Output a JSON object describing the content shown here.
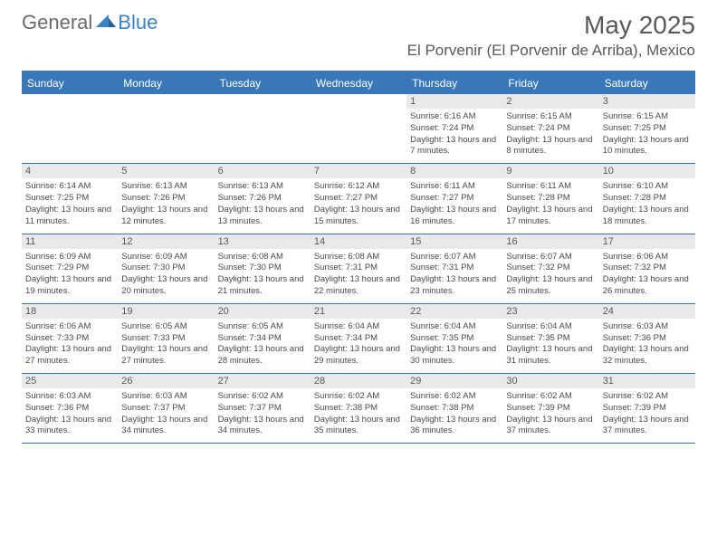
{
  "brand": {
    "general": "General",
    "blue": "Blue"
  },
  "title": "May 2025",
  "location": "El Porvenir (El Porvenir de Arriba), Mexico",
  "colors": {
    "header_bg": "#3878b8",
    "header_text": "#ffffff",
    "daynum_bg": "#e9e9e9",
    "text": "#5a5a5a",
    "border": "#3878b8"
  },
  "weekdays": [
    "Sunday",
    "Monday",
    "Tuesday",
    "Wednesday",
    "Thursday",
    "Friday",
    "Saturday"
  ],
  "month_start_weekday": 4,
  "days": [
    {
      "n": 1,
      "sunrise": "6:16 AM",
      "sunset": "7:24 PM",
      "daylight": "13 hours and 7 minutes."
    },
    {
      "n": 2,
      "sunrise": "6:15 AM",
      "sunset": "7:24 PM",
      "daylight": "13 hours and 8 minutes."
    },
    {
      "n": 3,
      "sunrise": "6:15 AM",
      "sunset": "7:25 PM",
      "daylight": "13 hours and 10 minutes."
    },
    {
      "n": 4,
      "sunrise": "6:14 AM",
      "sunset": "7:25 PM",
      "daylight": "13 hours and 11 minutes."
    },
    {
      "n": 5,
      "sunrise": "6:13 AM",
      "sunset": "7:26 PM",
      "daylight": "13 hours and 12 minutes."
    },
    {
      "n": 6,
      "sunrise": "6:13 AM",
      "sunset": "7:26 PM",
      "daylight": "13 hours and 13 minutes."
    },
    {
      "n": 7,
      "sunrise": "6:12 AM",
      "sunset": "7:27 PM",
      "daylight": "13 hours and 15 minutes."
    },
    {
      "n": 8,
      "sunrise": "6:11 AM",
      "sunset": "7:27 PM",
      "daylight": "13 hours and 16 minutes."
    },
    {
      "n": 9,
      "sunrise": "6:11 AM",
      "sunset": "7:28 PM",
      "daylight": "13 hours and 17 minutes."
    },
    {
      "n": 10,
      "sunrise": "6:10 AM",
      "sunset": "7:28 PM",
      "daylight": "13 hours and 18 minutes."
    },
    {
      "n": 11,
      "sunrise": "6:09 AM",
      "sunset": "7:29 PM",
      "daylight": "13 hours and 19 minutes."
    },
    {
      "n": 12,
      "sunrise": "6:09 AM",
      "sunset": "7:30 PM",
      "daylight": "13 hours and 20 minutes."
    },
    {
      "n": 13,
      "sunrise": "6:08 AM",
      "sunset": "7:30 PM",
      "daylight": "13 hours and 21 minutes."
    },
    {
      "n": 14,
      "sunrise": "6:08 AM",
      "sunset": "7:31 PM",
      "daylight": "13 hours and 22 minutes."
    },
    {
      "n": 15,
      "sunrise": "6:07 AM",
      "sunset": "7:31 PM",
      "daylight": "13 hours and 23 minutes."
    },
    {
      "n": 16,
      "sunrise": "6:07 AM",
      "sunset": "7:32 PM",
      "daylight": "13 hours and 25 minutes."
    },
    {
      "n": 17,
      "sunrise": "6:06 AM",
      "sunset": "7:32 PM",
      "daylight": "13 hours and 26 minutes."
    },
    {
      "n": 18,
      "sunrise": "6:06 AM",
      "sunset": "7:33 PM",
      "daylight": "13 hours and 27 minutes."
    },
    {
      "n": 19,
      "sunrise": "6:05 AM",
      "sunset": "7:33 PM",
      "daylight": "13 hours and 27 minutes."
    },
    {
      "n": 20,
      "sunrise": "6:05 AM",
      "sunset": "7:34 PM",
      "daylight": "13 hours and 28 minutes."
    },
    {
      "n": 21,
      "sunrise": "6:04 AM",
      "sunset": "7:34 PM",
      "daylight": "13 hours and 29 minutes."
    },
    {
      "n": 22,
      "sunrise": "6:04 AM",
      "sunset": "7:35 PM",
      "daylight": "13 hours and 30 minutes."
    },
    {
      "n": 23,
      "sunrise": "6:04 AM",
      "sunset": "7:35 PM",
      "daylight": "13 hours and 31 minutes."
    },
    {
      "n": 24,
      "sunrise": "6:03 AM",
      "sunset": "7:36 PM",
      "daylight": "13 hours and 32 minutes."
    },
    {
      "n": 25,
      "sunrise": "6:03 AM",
      "sunset": "7:36 PM",
      "daylight": "13 hours and 33 minutes."
    },
    {
      "n": 26,
      "sunrise": "6:03 AM",
      "sunset": "7:37 PM",
      "daylight": "13 hours and 34 minutes."
    },
    {
      "n": 27,
      "sunrise": "6:02 AM",
      "sunset": "7:37 PM",
      "daylight": "13 hours and 34 minutes."
    },
    {
      "n": 28,
      "sunrise": "6:02 AM",
      "sunset": "7:38 PM",
      "daylight": "13 hours and 35 minutes."
    },
    {
      "n": 29,
      "sunrise": "6:02 AM",
      "sunset": "7:38 PM",
      "daylight": "13 hours and 36 minutes."
    },
    {
      "n": 30,
      "sunrise": "6:02 AM",
      "sunset": "7:39 PM",
      "daylight": "13 hours and 37 minutes."
    },
    {
      "n": 31,
      "sunrise": "6:02 AM",
      "sunset": "7:39 PM",
      "daylight": "13 hours and 37 minutes."
    }
  ],
  "labels": {
    "sunrise": "Sunrise:",
    "sunset": "Sunset:",
    "daylight": "Daylight:"
  }
}
